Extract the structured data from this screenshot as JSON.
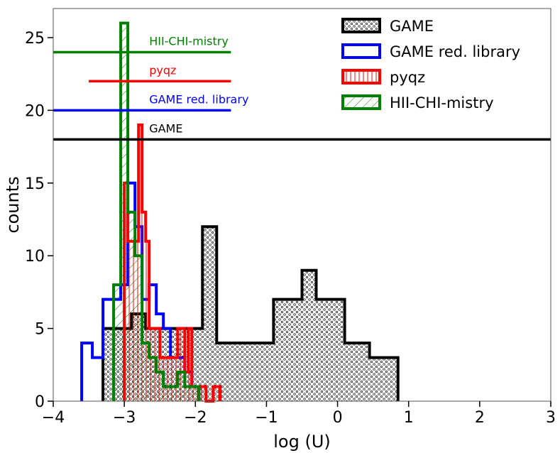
{
  "chart_data": {
    "type": "histogram",
    "xlabel": "log (U)",
    "ylabel": "counts",
    "xlim": [
      -4,
      3
    ],
    "ylim": [
      0,
      27
    ],
    "xticks": [
      -4,
      -3,
      -2,
      -1,
      0,
      1,
      2,
      3
    ],
    "xtick_labels": [
      "−4",
      "−3",
      "−2",
      "−1",
      "0",
      "1",
      "2",
      "3"
    ],
    "yticks": [
      0,
      5,
      10,
      15,
      20,
      25
    ],
    "ytick_labels": [
      "0",
      "5",
      "10",
      "15",
      "20",
      "25"
    ],
    "legend_position": "top-right",
    "series": [
      {
        "key": "game",
        "name": "GAME",
        "color": "#000000",
        "hatch": "dots",
        "edges": [
          -3.3,
          -3.1,
          -2.9,
          -2.7,
          -2.5,
          -2.3,
          -2.1,
          -1.9,
          -1.7,
          -1.5,
          -1.3,
          -1.1,
          -0.9,
          -0.7,
          -0.5,
          -0.3,
          -0.1,
          0.1,
          0.25,
          0.45,
          0.65,
          0.85
        ],
        "counts": [
          5,
          5,
          6,
          5,
          5,
          5,
          5,
          12,
          4,
          4,
          4,
          4,
          7,
          7,
          9,
          7,
          7,
          4,
          4,
          3,
          3
        ]
      },
      {
        "key": "game_red",
        "name": "GAME red. library",
        "color": "#0000ff",
        "hatch": "none",
        "edges": [
          -3.6,
          -3.45,
          -3.3,
          -3.15,
          -3.05,
          -2.95,
          -2.85,
          -2.75,
          -2.65,
          -2.55,
          -2.45,
          -2.35,
          -2.25,
          -2.15,
          -2.05,
          -1.95
        ],
        "counts": [
          4,
          3,
          7,
          7,
          8,
          15,
          12,
          7,
          8,
          6,
          5,
          3,
          3,
          2,
          1
        ]
      },
      {
        "key": "pyqz",
        "name": "pyqz",
        "color": "#ff0000",
        "hatch": "vertical",
        "edges": [
          -3.0,
          -2.95,
          -2.85,
          -2.8,
          -2.75,
          -2.7,
          -2.65,
          -2.55,
          -2.5,
          -2.4,
          -2.35,
          -2.25,
          -2.15,
          -2.1,
          -2.05,
          -1.95,
          -1.85,
          -1.75,
          -1.65
        ],
        "counts": [
          15,
          11,
          11,
          19,
          13,
          11,
          5,
          5,
          3,
          3,
          3,
          5,
          2,
          5,
          1,
          1,
          0,
          1
        ]
      },
      {
        "key": "hcm",
        "name": "HII-CHI-mistry",
        "color": "#008000",
        "hatch": "diagonal",
        "edges": [
          -3.15,
          -3.05,
          -2.95,
          -2.85,
          -2.75,
          -2.65,
          -2.55,
          -2.45,
          -2.35,
          -2.25,
          -2.15,
          -2.05,
          -1.95
        ],
        "counts": [
          8,
          26,
          13,
          10,
          4,
          3,
          2,
          1,
          1,
          2,
          1,
          1
        ]
      }
    ],
    "reference_lines": [
      {
        "key": "hcm",
        "label": "HII-CHI-mistry",
        "y": 24,
        "x_from": -4.0,
        "x_to": -1.5,
        "color": "#008000"
      },
      {
        "key": "pyqz",
        "label": "pyqz",
        "y": 22,
        "x_from": -3.5,
        "x_to": -1.5,
        "color": "#ff0000"
      },
      {
        "key": "game_red",
        "label": "GAME red. library",
        "y": 20,
        "x_from": -4.0,
        "x_to": -1.5,
        "color": "#0000ff"
      },
      {
        "key": "game",
        "label": "GAME",
        "y": 18,
        "x_from": -4.0,
        "x_to": 3.0,
        "color": "#000000"
      }
    ]
  }
}
